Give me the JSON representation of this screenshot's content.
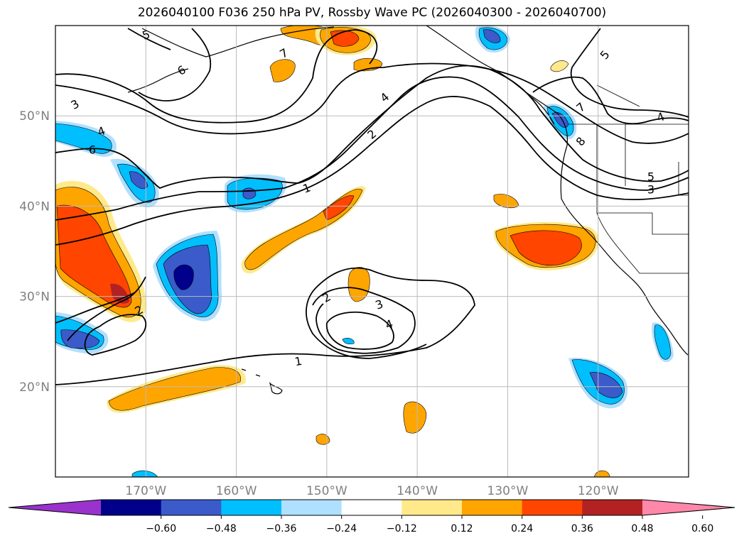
{
  "title": "2026040100 F036 250 hPa PV, Rossby Wave PC (2026040300 - 2026040700)",
  "map": {
    "lon_range": [
      -180,
      -110
    ],
    "lat_range": [
      10,
      60
    ],
    "lon_ticks": [
      {
        "value": -170,
        "label": "170°W"
      },
      {
        "value": -160,
        "label": "160°W"
      },
      {
        "value": -150,
        "label": "150°W"
      },
      {
        "value": -140,
        "label": "140°W"
      },
      {
        "value": -130,
        "label": "130°W"
      },
      {
        "value": -120,
        "label": "120°W"
      }
    ],
    "lat_ticks": [
      {
        "value": 50,
        "label": "50°N"
      },
      {
        "value": 40,
        "label": "40°N"
      },
      {
        "value": 30,
        "label": "30°N"
      },
      {
        "value": 20,
        "label": "20°N"
      }
    ],
    "grid": true
  },
  "contour_labels": [
    "5",
    "6",
    "7",
    "3",
    "4",
    "6",
    "4",
    "2",
    "1",
    "2",
    "3",
    "4",
    "1",
    "5",
    "7",
    "8",
    "4",
    "5",
    "3",
    "2"
  ],
  "colorbar": {
    "extend": "both",
    "colors": [
      "#9933cc",
      "#00008b",
      "#3a5bc9",
      "#00bfff",
      "#b0e0ff",
      "#ffffff",
      "#ffe98a",
      "#ffa500",
      "#ff4500",
      "#b22222",
      "#ff88aa"
    ],
    "labels": [
      "−0.60",
      "−0.48",
      "−0.36",
      "−0.24",
      "−0.12",
      "0.12",
      "0.24",
      "0.36",
      "0.48",
      "0.60"
    ]
  },
  "colors": {
    "contour": "#000000",
    "grid": "#bbbbbb",
    "tick_label": "#7f7f7f"
  }
}
